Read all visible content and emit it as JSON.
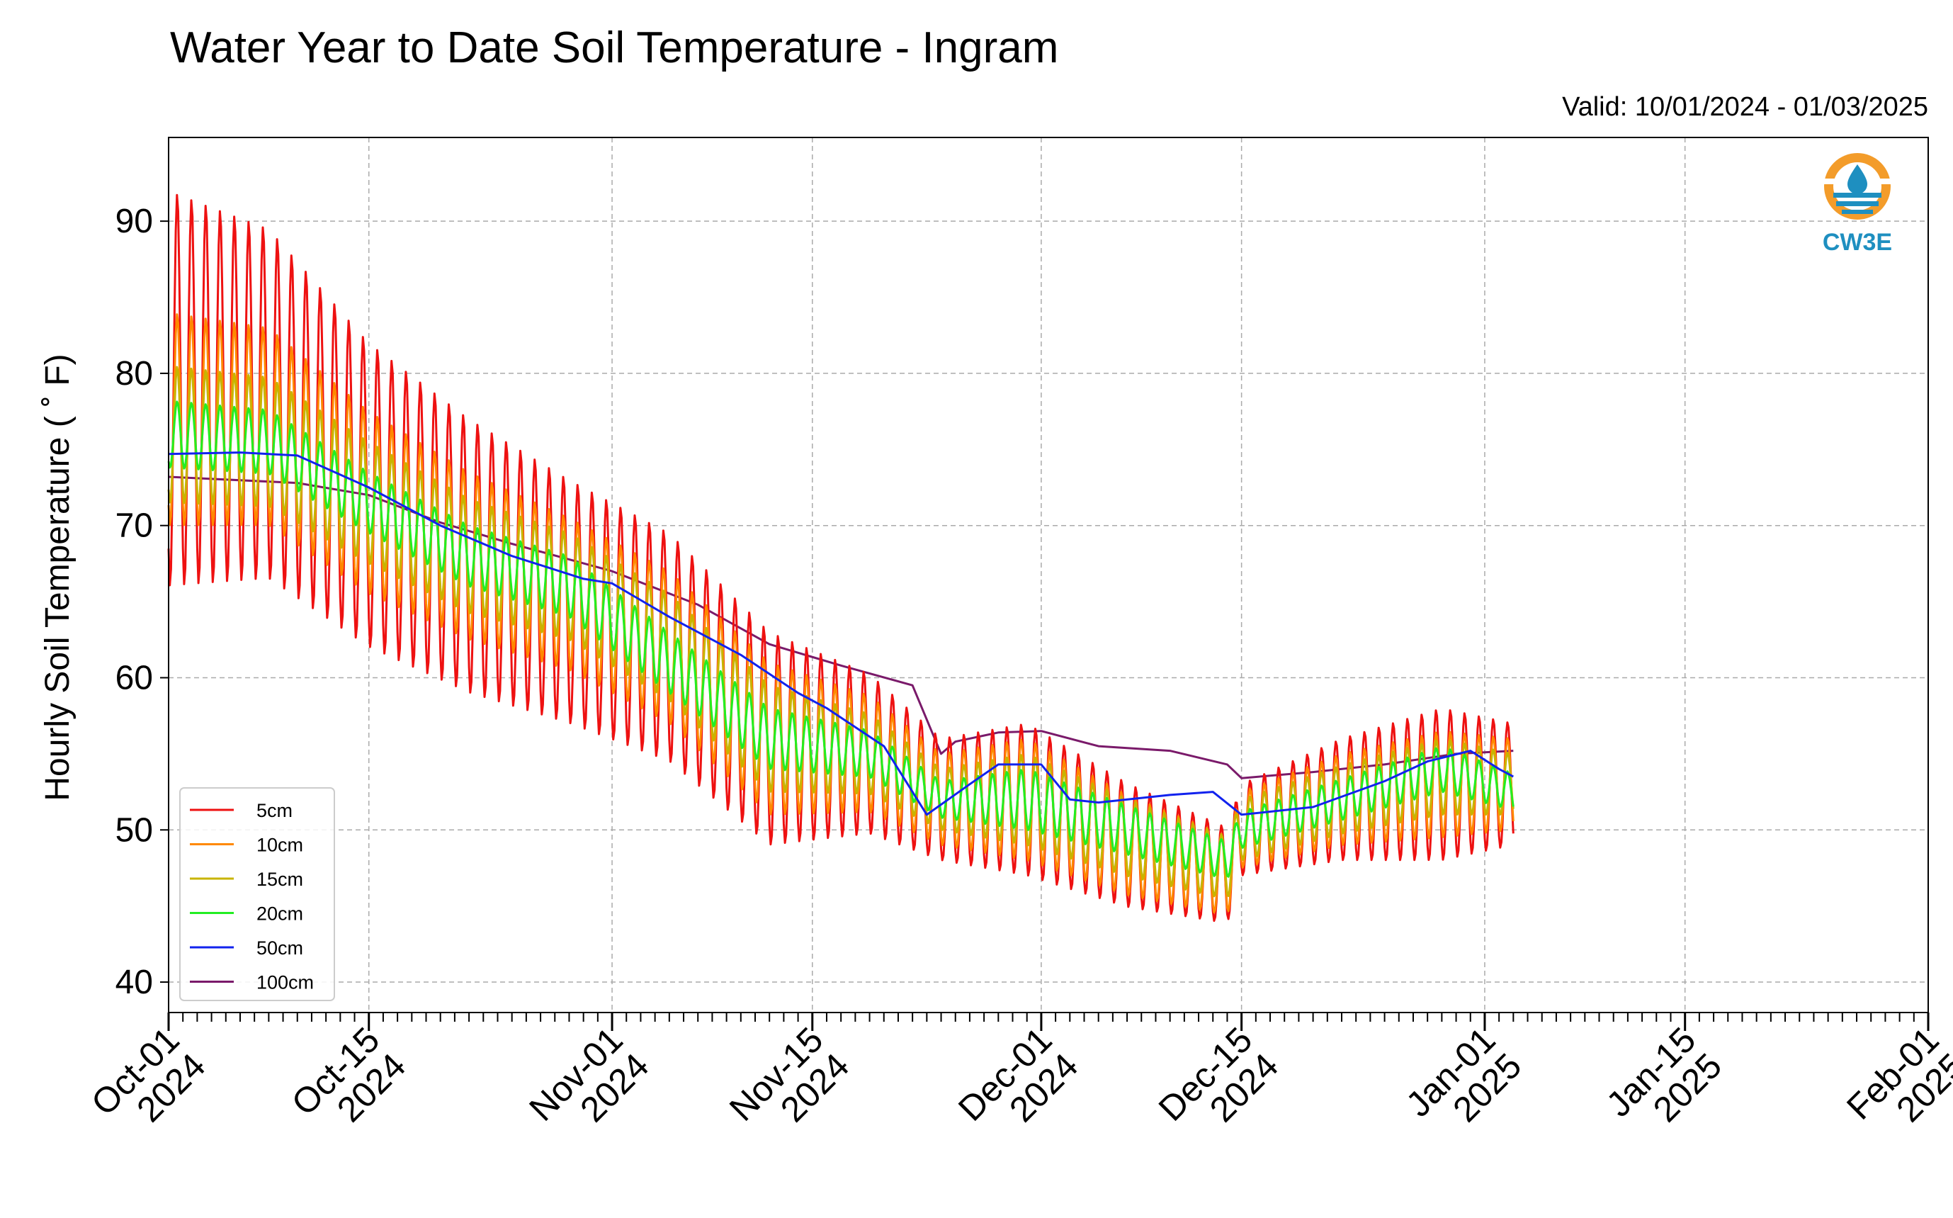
{
  "chart_data": {
    "type": "line",
    "title": "Water Year to Date Soil Temperature - Ingram",
    "subtitle": "Valid: 10/01/2024 - 01/03/2025",
    "xlabel": "",
    "ylabel": "Hourly Soil Temperature ( ˚ F)",
    "x_range": [
      "2024-10-01",
      "2025-02-01"
    ],
    "ylim": [
      38,
      95.5
    ],
    "y_ticks": [
      40,
      50,
      60,
      70,
      80,
      90
    ],
    "x_ticks": [
      {
        "date": "2024-10-01",
        "label": [
          "Oct-01",
          "2024"
        ]
      },
      {
        "date": "2024-10-15",
        "label": [
          "Oct-15",
          "2024"
        ]
      },
      {
        "date": "2024-11-01",
        "label": [
          "Nov-01",
          "2024"
        ]
      },
      {
        "date": "2024-11-15",
        "label": [
          "Nov-15",
          "2024"
        ]
      },
      {
        "date": "2024-12-01",
        "label": [
          "Dec-01",
          "2024"
        ]
      },
      {
        "date": "2024-12-15",
        "label": [
          "Dec-15",
          "2024"
        ]
      },
      {
        "date": "2025-01-01",
        "label": [
          "Jan-01",
          "2025"
        ]
      },
      {
        "date": "2025-01-15",
        "label": [
          "Jan-15",
          "2025"
        ]
      },
      {
        "date": "2025-02-01",
        "label": [
          "Feb-01",
          "2025"
        ]
      }
    ],
    "grid": true,
    "legend_position": "bottom-left",
    "series": [
      {
        "name": "5cm",
        "color": "#ee1111",
        "daily_mean": [
          [
            "2024-10-01",
            79
          ],
          [
            "2024-10-08",
            78
          ],
          [
            "2024-10-15",
            72
          ],
          [
            "2024-10-22",
            68
          ],
          [
            "2024-10-29",
            65
          ],
          [
            "2024-11-05",
            62
          ],
          [
            "2024-11-12",
            56
          ],
          [
            "2024-11-19",
            55
          ],
          [
            "2024-11-24",
            52
          ],
          [
            "2024-11-30",
            52
          ],
          [
            "2024-12-07",
            49
          ],
          [
            "2024-12-14",
            47
          ],
          [
            "2024-12-15",
            50
          ],
          [
            "2024-12-22",
            52
          ],
          [
            "2024-12-29",
            53
          ],
          [
            "2025-01-03",
            53
          ]
        ],
        "daily_amplitude": [
          [
            "2024-10-01",
            13
          ],
          [
            "2024-10-15",
            10
          ],
          [
            "2024-10-29",
            8
          ],
          [
            "2024-11-12",
            7
          ],
          [
            "2024-11-24",
            4
          ],
          [
            "2024-11-30",
            5
          ],
          [
            "2024-12-15",
            3
          ],
          [
            "2024-12-29",
            5
          ],
          [
            "2025-01-03",
            4
          ]
        ]
      },
      {
        "name": "10cm",
        "color": "#ff8800",
        "daily_mean": [
          [
            "2024-10-01",
            77
          ],
          [
            "2024-10-08",
            76.5
          ],
          [
            "2024-10-15",
            71.5
          ],
          [
            "2024-10-22",
            68
          ],
          [
            "2024-10-29",
            65.5
          ],
          [
            "2024-11-05",
            62
          ],
          [
            "2024-11-12",
            56
          ],
          [
            "2024-11-19",
            55
          ],
          [
            "2024-11-24",
            52
          ],
          [
            "2024-11-30",
            52
          ],
          [
            "2024-12-07",
            49
          ],
          [
            "2024-12-14",
            47
          ],
          [
            "2024-12-15",
            50
          ],
          [
            "2024-12-22",
            52
          ],
          [
            "2024-12-29",
            53
          ],
          [
            "2025-01-03",
            53
          ]
        ],
        "daily_amplitude": [
          [
            "2024-10-01",
            7
          ],
          [
            "2024-10-15",
            6
          ],
          [
            "2024-10-29",
            5
          ],
          [
            "2024-11-12",
            5
          ],
          [
            "2024-11-24",
            3
          ],
          [
            "2024-11-30",
            4
          ],
          [
            "2024-12-15",
            2.5
          ],
          [
            "2024-12-29",
            3.5
          ],
          [
            "2025-01-03",
            3
          ]
        ]
      },
      {
        "name": "15cm",
        "color": "#c8b400",
        "daily_mean": [
          [
            "2024-10-01",
            76
          ],
          [
            "2024-10-08",
            75.5
          ],
          [
            "2024-10-15",
            71.5
          ],
          [
            "2024-10-22",
            68
          ],
          [
            "2024-10-29",
            66
          ],
          [
            "2024-11-05",
            62
          ],
          [
            "2024-11-12",
            56
          ],
          [
            "2024-11-19",
            55
          ],
          [
            "2024-11-24",
            52
          ],
          [
            "2024-11-30",
            52
          ],
          [
            "2024-12-07",
            49.5
          ],
          [
            "2024-12-14",
            47.5
          ],
          [
            "2024-12-15",
            50
          ],
          [
            "2024-12-22",
            52
          ],
          [
            "2024-12-29",
            53.5
          ],
          [
            "2025-01-03",
            53
          ]
        ],
        "daily_amplitude": [
          [
            "2024-10-01",
            4.5
          ],
          [
            "2024-10-15",
            4
          ],
          [
            "2024-10-29",
            3.5
          ],
          [
            "2024-11-12",
            3.5
          ],
          [
            "2024-11-24",
            2
          ],
          [
            "2024-11-30",
            3
          ],
          [
            "2024-12-15",
            2
          ],
          [
            "2024-12-29",
            2.5
          ],
          [
            "2025-01-03",
            2
          ]
        ]
      },
      {
        "name": "20cm",
        "color": "#22ee22",
        "daily_mean": [
          [
            "2024-10-01",
            76
          ],
          [
            "2024-10-08",
            75.5
          ],
          [
            "2024-10-15",
            71.5
          ],
          [
            "2024-10-22",
            68
          ],
          [
            "2024-10-29",
            66
          ],
          [
            "2024-11-05",
            61
          ],
          [
            "2024-11-12",
            56
          ],
          [
            "2024-11-19",
            55
          ],
          [
            "2024-11-24",
            52
          ],
          [
            "2024-11-30",
            52
          ],
          [
            "2024-12-07",
            50
          ],
          [
            "2024-12-14",
            48
          ],
          [
            "2024-12-15",
            50
          ],
          [
            "2024-12-22",
            52
          ],
          [
            "2024-12-29",
            54
          ],
          [
            "2025-01-03",
            52.5
          ]
        ],
        "daily_amplitude": [
          [
            "2024-10-01",
            2.2
          ],
          [
            "2024-10-15",
            2
          ],
          [
            "2024-10-29",
            2
          ],
          [
            "2024-11-12",
            2
          ],
          [
            "2024-11-24",
            1.2
          ],
          [
            "2024-11-30",
            2
          ],
          [
            "2024-12-15",
            1.2
          ],
          [
            "2024-12-29",
            1.5
          ],
          [
            "2025-01-03",
            1.2
          ]
        ]
      },
      {
        "name": "50cm",
        "color": "#1122ee",
        "points": [
          [
            "2024-10-01",
            74.7
          ],
          [
            "2024-10-06",
            74.8
          ],
          [
            "2024-10-10",
            74.6
          ],
          [
            "2024-10-15",
            72.5
          ],
          [
            "2024-10-20",
            70
          ],
          [
            "2024-10-25",
            68
          ],
          [
            "2024-10-30",
            66.5
          ],
          [
            "2024-11-01",
            66.2
          ],
          [
            "2024-11-05",
            64
          ],
          [
            "2024-11-10",
            61.5
          ],
          [
            "2024-11-14",
            59
          ],
          [
            "2024-11-16",
            58
          ],
          [
            "2024-11-20",
            55.5
          ],
          [
            "2024-11-23",
            51
          ],
          [
            "2024-11-26",
            53
          ],
          [
            "2024-11-28",
            54.3
          ],
          [
            "2024-12-01",
            54.3
          ],
          [
            "2024-12-03",
            52
          ],
          [
            "2024-12-05",
            51.8
          ],
          [
            "2024-12-10",
            52.3
          ],
          [
            "2024-12-13",
            52.5
          ],
          [
            "2024-12-15",
            51
          ],
          [
            "2024-12-20",
            51.5
          ],
          [
            "2024-12-25",
            53.2
          ],
          [
            "2024-12-28",
            54.5
          ],
          [
            "2024-12-31",
            55.2
          ],
          [
            "2025-01-02",
            54
          ],
          [
            "2025-01-03",
            53.5
          ]
        ]
      },
      {
        "name": "100cm",
        "color": "#7a1a6a",
        "points": [
          [
            "2024-10-01",
            73.2
          ],
          [
            "2024-10-10",
            72.8
          ],
          [
            "2024-10-15",
            72
          ],
          [
            "2024-10-20",
            70.2
          ],
          [
            "2024-10-25",
            68.8
          ],
          [
            "2024-11-01",
            67
          ],
          [
            "2024-11-07",
            64.8
          ],
          [
            "2024-11-12",
            62.2
          ],
          [
            "2024-11-17",
            60.8
          ],
          [
            "2024-11-22",
            59.5
          ],
          [
            "2024-11-24",
            55
          ],
          [
            "2024-11-25",
            55.8
          ],
          [
            "2024-11-28",
            56.4
          ],
          [
            "2024-12-01",
            56.5
          ],
          [
            "2024-12-05",
            55.5
          ],
          [
            "2024-12-10",
            55.2
          ],
          [
            "2024-12-14",
            54.3
          ],
          [
            "2024-12-15",
            53.4
          ],
          [
            "2024-12-20",
            53.8
          ],
          [
            "2024-12-25",
            54.3
          ],
          [
            "2024-12-30",
            55
          ],
          [
            "2025-01-03",
            55.2
          ]
        ]
      }
    ]
  },
  "logo": {
    "text": "CW3E",
    "ring_color": "#f39c2a",
    "water_color": "#1e8fc0"
  }
}
